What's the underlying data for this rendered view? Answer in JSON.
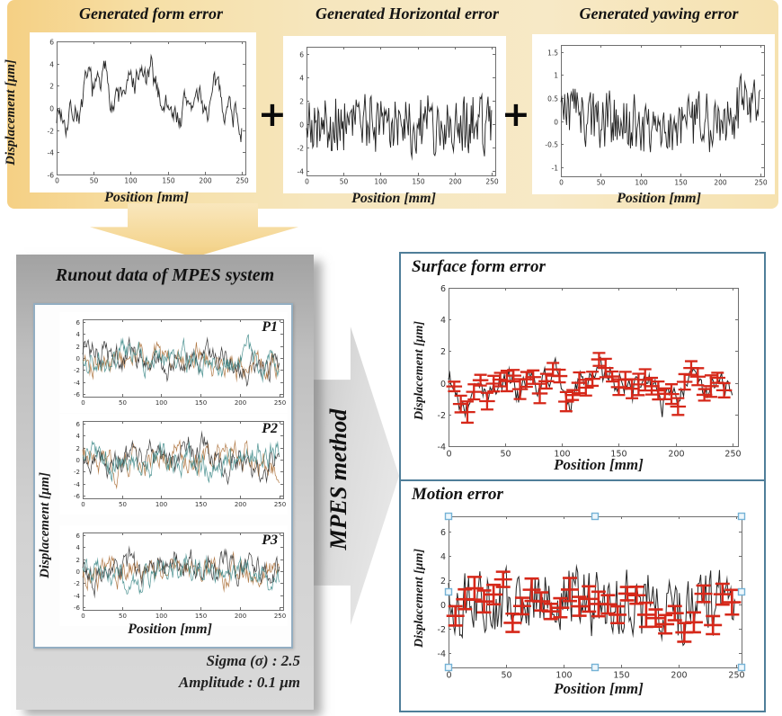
{
  "colors": {
    "band_yellow_dark": "#f5d084",
    "band_yellow_light": "#f7e9c6",
    "arrow_yellow": "#f3d083",
    "panel_gray": "#bfbfbf",
    "arrow_gray": "#dcdcdc",
    "result_border_blue": "#4f7e99",
    "inner_border_blue": "#93aec2",
    "errorbar_red": "#d6281a",
    "handle_blue": "#74b2d6",
    "signal_black": "#2a2a2a",
    "signal_teal": "#4c9291",
    "signal_orange": "#b07844"
  },
  "top_band": {
    "plus": "+",
    "charts": [
      {
        "title": "Generated form error",
        "ylabel": "Displacement [μm]",
        "xlabel": "Position [mm]",
        "type": "line",
        "xlim": [
          0,
          255
        ],
        "ylim": [
          -6,
          6
        ],
        "xtick_vals": [
          0,
          50,
          100,
          150,
          200,
          250
        ],
        "xtick_labels": [
          "0",
          "50",
          "100",
          "150",
          "200",
          "250"
        ],
        "ytick_vals": [
          6,
          4,
          2,
          0,
          -2,
          -4,
          -6
        ],
        "ytick_labels": [
          "6",
          "4",
          "2",
          "0",
          "-2",
          "-4",
          "-6"
        ],
        "series": [
          {
            "seed": 7,
            "n": 240,
            "smooth": 0.86,
            "amp": 0.95,
            "slow": 0.5,
            "color": "#2a2a2a",
            "lw": 0.9,
            "main": true
          }
        ]
      },
      {
        "title": "Generated Horizontal error",
        "xlabel": "Position [mm]",
        "type": "line",
        "xlim": [
          0,
          255
        ],
        "ylim": [
          -4.4,
          6.6
        ],
        "xtick_vals": [
          0,
          50,
          100,
          150,
          200,
          250
        ],
        "xtick_labels": [
          "0",
          "50",
          "100",
          "150",
          "200",
          "250"
        ],
        "ytick_vals": [
          6,
          4,
          2,
          0,
          -2,
          -4
        ],
        "ytick_labels": [
          "6",
          "4",
          "2",
          "0",
          "-2",
          "-4"
        ],
        "series": [
          {
            "seed": 21,
            "n": 210,
            "smooth": 0.15,
            "amp": 2.55,
            "slow": 0,
            "color": "#1f1f1f",
            "lw": 0.9,
            "main": true
          }
        ]
      },
      {
        "title": "Generated yawing error",
        "xlabel": "Position [mm]",
        "type": "line",
        "xlim": [
          0,
          255
        ],
        "ylim": [
          -1.2,
          1.65
        ],
        "xtick_vals": [
          0,
          50,
          100,
          150,
          200,
          250
        ],
        "xtick_labels": [
          "0",
          "50",
          "100",
          "150",
          "200",
          "250"
        ],
        "ytick_vals": [
          1.5,
          1,
          0.5,
          0,
          -0.5,
          -1
        ],
        "ytick_labels": [
          "1.5",
          "1",
          "0.5",
          "0",
          "-0.5",
          "-1"
        ],
        "series": [
          {
            "seed": 33,
            "n": 210,
            "smooth": 0.3,
            "amp": 0.62,
            "slow": 0,
            "bowl": 0.5,
            "color": "#222222",
            "lw": 0.9,
            "main": true
          }
        ]
      }
    ]
  },
  "runout": {
    "title": "Runout data of MPES system",
    "ylabel": "Displacement [μm]",
    "xlabel": "Position [mm]",
    "sigma_line": "Sigma (σ) : 2.5",
    "amplitude_line": "Amplitude : 0.1 μm",
    "subplots": [
      {
        "label": "P1",
        "chart": {
          "type": "line",
          "xlim": [
            0,
            255
          ],
          "ylim": [
            -6.4,
            6.4
          ],
          "xtick_vals": [
            0,
            50,
            100,
            150,
            200,
            250
          ],
          "xtick_labels": [
            "0",
            "50",
            "100",
            "150",
            "200",
            "250"
          ],
          "ytick_vals": [
            6,
            4,
            2,
            0,
            -2,
            -4,
            -6
          ],
          "ytick_labels": [
            "6",
            "4",
            "2",
            "0",
            "-2",
            "-4",
            "-6"
          ],
          "series": [
            {
              "seed": 101,
              "n": 250,
              "smooth": 0.72,
              "amp": 1.5,
              "slow": 0.35,
              "color": "#b07844",
              "lw": 0.7
            },
            {
              "seed": 102,
              "n": 250,
              "smooth": 0.72,
              "amp": 1.5,
              "slow": 0.35,
              "color": "#3b3b3b",
              "lw": 0.7
            },
            {
              "seed": 103,
              "n": 250,
              "smooth": 0.72,
              "amp": 1.5,
              "slow": 0.35,
              "color": "#4c9291",
              "lw": 0.7
            }
          ]
        }
      },
      {
        "label": "P2",
        "chart": {
          "type": "line",
          "xlim": [
            0,
            255
          ],
          "ylim": [
            -6.4,
            6.4
          ],
          "xtick_vals": [
            0,
            50,
            100,
            150,
            200,
            250
          ],
          "xtick_labels": [
            "0",
            "50",
            "100",
            "150",
            "200",
            "250"
          ],
          "ytick_vals": [
            6,
            4,
            2,
            0,
            -2,
            -4,
            -6
          ],
          "ytick_labels": [
            "6",
            "4",
            "2",
            "0",
            "-2",
            "-4",
            "-6"
          ],
          "series": [
            {
              "seed": 111,
              "n": 250,
              "smooth": 0.72,
              "amp": 1.5,
              "slow": 0.35,
              "color": "#b07844",
              "lw": 0.7
            },
            {
              "seed": 112,
              "n": 250,
              "smooth": 0.72,
              "amp": 1.5,
              "slow": 0.35,
              "color": "#3b3b3b",
              "lw": 0.7
            },
            {
              "seed": 113,
              "n": 250,
              "smooth": 0.72,
              "amp": 1.5,
              "slow": 0.35,
              "color": "#4c9291",
              "lw": 0.7
            }
          ]
        }
      },
      {
        "label": "P3",
        "chart": {
          "type": "line",
          "xlim": [
            0,
            255
          ],
          "ylim": [
            -6.4,
            6.4
          ],
          "xtick_vals": [
            0,
            50,
            100,
            150,
            200,
            250
          ],
          "xtick_labels": [
            "0",
            "50",
            "100",
            "150",
            "200",
            "250"
          ],
          "ytick_vals": [
            6,
            4,
            2,
            0,
            -2,
            -4,
            -6
          ],
          "ytick_labels": [
            "6",
            "4",
            "2",
            "0",
            "-2",
            "-4",
            "-6"
          ],
          "series": [
            {
              "seed": 121,
              "n": 250,
              "smooth": 0.72,
              "amp": 1.5,
              "slow": 0.35,
              "color": "#b07844",
              "lw": 0.7
            },
            {
              "seed": 122,
              "n": 250,
              "smooth": 0.72,
              "amp": 1.5,
              "slow": 0.35,
              "color": "#3b3b3b",
              "lw": 0.7
            },
            {
              "seed": 123,
              "n": 250,
              "smooth": 0.72,
              "amp": 1.5,
              "slow": 0.35,
              "color": "#4c9291",
              "lw": 0.7
            }
          ]
        }
      }
    ]
  },
  "mpes_arrow": {
    "label": "MPES method"
  },
  "results": {
    "surface": {
      "title": "Surface form error",
      "ylabel": "Displacement [μm]",
      "xlabel": "Position [mm]",
      "chart": {
        "type": "line+errorbar",
        "xlim": [
          0,
          255
        ],
        "ylim": [
          -4,
          6
        ],
        "xtick_vals": [
          0,
          50,
          100,
          150,
          200,
          250
        ],
        "xtick_labels": [
          "0",
          "50",
          "100",
          "150",
          "200",
          "250"
        ],
        "ytick_vals": [
          6,
          4,
          2,
          0,
          -2,
          -4
        ],
        "ytick_labels": [
          "6",
          "4",
          "2",
          "0",
          "-2",
          "-4"
        ],
        "series": [
          {
            "seed": 55,
            "n": 240,
            "smooth": 0.8,
            "amp": 0.55,
            "slow": 0.35,
            "color": "#1c1c1c",
            "lw": 1,
            "main": true
          }
        ],
        "errorbars": {
          "seed": 300,
          "count": 42,
          "start": 5,
          "step": 5.8,
          "jit": 0.18,
          "follow": 1,
          "hmin": 0.3,
          "hmax": 0.68,
          "cmin": -1.9,
          "cmax": 2.1,
          "cap": 7,
          "lw": 2.3,
          "color": "#d6281a"
        }
      }
    },
    "motion": {
      "title": "Motion error",
      "ylabel": "Displacement [μm]",
      "xlabel": "Position [mm]",
      "chart": {
        "type": "line+errorbar",
        "xlim": [
          0,
          255
        ],
        "ylim": [
          -5.2,
          7.3
        ],
        "xtick_vals": [
          0,
          50,
          100,
          150,
          200,
          250
        ],
        "xtick_labels": [
          "0",
          "50",
          "100",
          "150",
          "200",
          "250"
        ],
        "ytick_vals": [
          6,
          4,
          2,
          0,
          -2,
          -4
        ],
        "ytick_labels": [
          "6",
          "4",
          "2",
          "0",
          "-2",
          "-4"
        ],
        "series": [
          {
            "seed": 88,
            "n": 230,
            "smooth": 0.25,
            "amp": 2.5,
            "slow": 0.25,
            "color": "#262626",
            "lw": 1,
            "main": true
          }
        ],
        "errorbars": {
          "seed": 400,
          "count": 30,
          "start": 6,
          "step": 8.3,
          "jit": 1.0,
          "follow": 0.5,
          "hmin": 0.55,
          "hmax": 1.05,
          "cmin": -2.6,
          "cmax": 3.8,
          "cap": 8,
          "lw": 2.6,
          "color": "#d6281a"
        },
        "handles": {
          "size": 7,
          "stroke": "#74b2d6",
          "fill": "#eef7fc"
        }
      }
    }
  }
}
